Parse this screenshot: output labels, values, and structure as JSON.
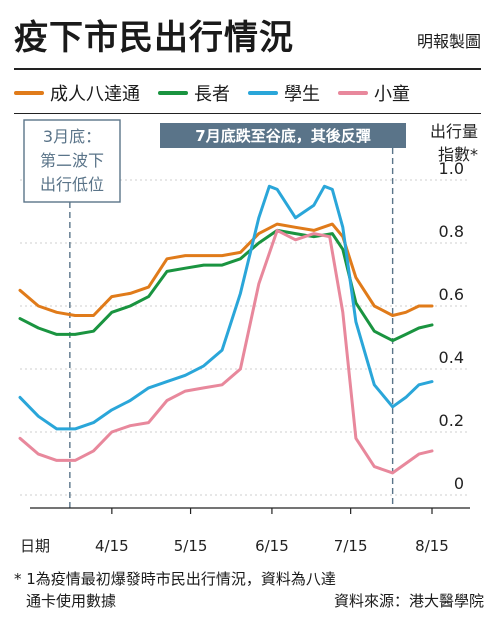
{
  "header": {
    "title": "疫下市民出行情況",
    "source": "明報製圖"
  },
  "footer": {
    "note": "* 1為疫情最初爆發時市民出行情況，資料為八達通卡使用數據",
    "note_line1": "* 1為疫情最初爆發時市民出行情況，資料為八達",
    "note_line2": "通卡使用數據",
    "credit": "資料來源：港大醫學院"
  },
  "chart_data": {
    "type": "line",
    "ylabel": "出行量指數*",
    "ylabel_line1": "出行量",
    "ylabel_line2": "指數*",
    "xlabel": "日期",
    "ylim": [
      0,
      1.0
    ],
    "y_ticks": [
      "0",
      "0.2",
      "0.4",
      "0.6",
      "0.8",
      "1.0"
    ],
    "y_tick_values": [
      0,
      0.2,
      0.4,
      0.6,
      0.8,
      1.0
    ],
    "x_ticks": [
      "4/15",
      "5/15",
      "6/15",
      "7/15",
      "8/15"
    ],
    "x_tick_values": [
      "2022-04-15",
      "2022-05-15",
      "2022-06-15",
      "2022-07-15",
      "2022-08-15"
    ],
    "xlim": [
      "2022-03-11",
      "2022-08-15"
    ],
    "grid": true,
    "legend_position": "top",
    "annotations": [
      {
        "text": "3月底：第二波下出行低位",
        "line1": "3月底：",
        "line2": "第二波下",
        "line3": "出行低位",
        "x": "2022-03-30"
      },
      {
        "text": "7月底跌至谷底，其後反彈",
        "x": "2022-07-31"
      }
    ],
    "series": [
      {
        "name": "成人八達通",
        "color": "#e07b1a",
        "points": [
          [
            "2022-03-11",
            0.65
          ],
          [
            "2022-03-18",
            0.6
          ],
          [
            "2022-03-25",
            0.58
          ],
          [
            "2022-04-01",
            0.57
          ],
          [
            "2022-04-08",
            0.57
          ],
          [
            "2022-04-15",
            0.63
          ],
          [
            "2022-04-22",
            0.64
          ],
          [
            "2022-04-29",
            0.66
          ],
          [
            "2022-05-06",
            0.75
          ],
          [
            "2022-05-13",
            0.76
          ],
          [
            "2022-05-20",
            0.76
          ],
          [
            "2022-05-27",
            0.76
          ],
          [
            "2022-06-03",
            0.77
          ],
          [
            "2022-06-10",
            0.83
          ],
          [
            "2022-06-17",
            0.86
          ],
          [
            "2022-06-24",
            0.85
          ],
          [
            "2022-07-01",
            0.84
          ],
          [
            "2022-07-08",
            0.86
          ],
          [
            "2022-07-12",
            0.82
          ],
          [
            "2022-07-17",
            0.69
          ],
          [
            "2022-07-24",
            0.6
          ],
          [
            "2022-07-31",
            0.57
          ],
          [
            "2022-08-05",
            0.58
          ],
          [
            "2022-08-10",
            0.6
          ],
          [
            "2022-08-15",
            0.6
          ]
        ]
      },
      {
        "name": "長者",
        "color": "#1a9440",
        "points": [
          [
            "2022-03-11",
            0.56
          ],
          [
            "2022-03-18",
            0.53
          ],
          [
            "2022-03-25",
            0.51
          ],
          [
            "2022-04-01",
            0.51
          ],
          [
            "2022-04-08",
            0.52
          ],
          [
            "2022-04-15",
            0.58
          ],
          [
            "2022-04-22",
            0.6
          ],
          [
            "2022-04-29",
            0.63
          ],
          [
            "2022-05-06",
            0.71
          ],
          [
            "2022-05-13",
            0.72
          ],
          [
            "2022-05-20",
            0.73
          ],
          [
            "2022-05-27",
            0.73
          ],
          [
            "2022-06-03",
            0.75
          ],
          [
            "2022-06-10",
            0.8
          ],
          [
            "2022-06-17",
            0.84
          ],
          [
            "2022-06-24",
            0.83
          ],
          [
            "2022-07-01",
            0.82
          ],
          [
            "2022-07-08",
            0.83
          ],
          [
            "2022-07-12",
            0.78
          ],
          [
            "2022-07-17",
            0.61
          ],
          [
            "2022-07-24",
            0.52
          ],
          [
            "2022-07-31",
            0.49
          ],
          [
            "2022-08-05",
            0.51
          ],
          [
            "2022-08-10",
            0.53
          ],
          [
            "2022-08-15",
            0.54
          ]
        ]
      },
      {
        "name": "學生",
        "color": "#2aa6d9",
        "points": [
          [
            "2022-03-11",
            0.31
          ],
          [
            "2022-03-18",
            0.25
          ],
          [
            "2022-03-25",
            0.21
          ],
          [
            "2022-04-01",
            0.21
          ],
          [
            "2022-04-08",
            0.23
          ],
          [
            "2022-04-15",
            0.27
          ],
          [
            "2022-04-22",
            0.3
          ],
          [
            "2022-04-29",
            0.34
          ],
          [
            "2022-05-06",
            0.36
          ],
          [
            "2022-05-13",
            0.38
          ],
          [
            "2022-05-20",
            0.41
          ],
          [
            "2022-05-27",
            0.46
          ],
          [
            "2022-06-03",
            0.64
          ],
          [
            "2022-06-10",
            0.88
          ],
          [
            "2022-06-14",
            0.98
          ],
          [
            "2022-06-17",
            0.97
          ],
          [
            "2022-06-24",
            0.88
          ],
          [
            "2022-07-01",
            0.92
          ],
          [
            "2022-07-05",
            0.98
          ],
          [
            "2022-07-08",
            0.97
          ],
          [
            "2022-07-12",
            0.85
          ],
          [
            "2022-07-17",
            0.55
          ],
          [
            "2022-07-24",
            0.35
          ],
          [
            "2022-07-31",
            0.28
          ],
          [
            "2022-08-05",
            0.31
          ],
          [
            "2022-08-10",
            0.35
          ],
          [
            "2022-08-15",
            0.36
          ]
        ]
      },
      {
        "name": "小童",
        "color": "#e8889c",
        "points": [
          [
            "2022-03-11",
            0.18
          ],
          [
            "2022-03-18",
            0.13
          ],
          [
            "2022-03-25",
            0.11
          ],
          [
            "2022-04-01",
            0.11
          ],
          [
            "2022-04-08",
            0.14
          ],
          [
            "2022-04-15",
            0.2
          ],
          [
            "2022-04-22",
            0.22
          ],
          [
            "2022-04-29",
            0.23
          ],
          [
            "2022-05-06",
            0.3
          ],
          [
            "2022-05-13",
            0.33
          ],
          [
            "2022-05-20",
            0.34
          ],
          [
            "2022-05-27",
            0.35
          ],
          [
            "2022-06-03",
            0.4
          ],
          [
            "2022-06-10",
            0.67
          ],
          [
            "2022-06-17",
            0.84
          ],
          [
            "2022-06-24",
            0.81
          ],
          [
            "2022-07-01",
            0.83
          ],
          [
            "2022-07-07",
            0.82
          ],
          [
            "2022-07-12",
            0.58
          ],
          [
            "2022-07-17",
            0.18
          ],
          [
            "2022-07-24",
            0.09
          ],
          [
            "2022-07-31",
            0.07
          ],
          [
            "2022-08-05",
            0.1
          ],
          [
            "2022-08-10",
            0.13
          ],
          [
            "2022-08-15",
            0.14
          ]
        ]
      }
    ]
  }
}
